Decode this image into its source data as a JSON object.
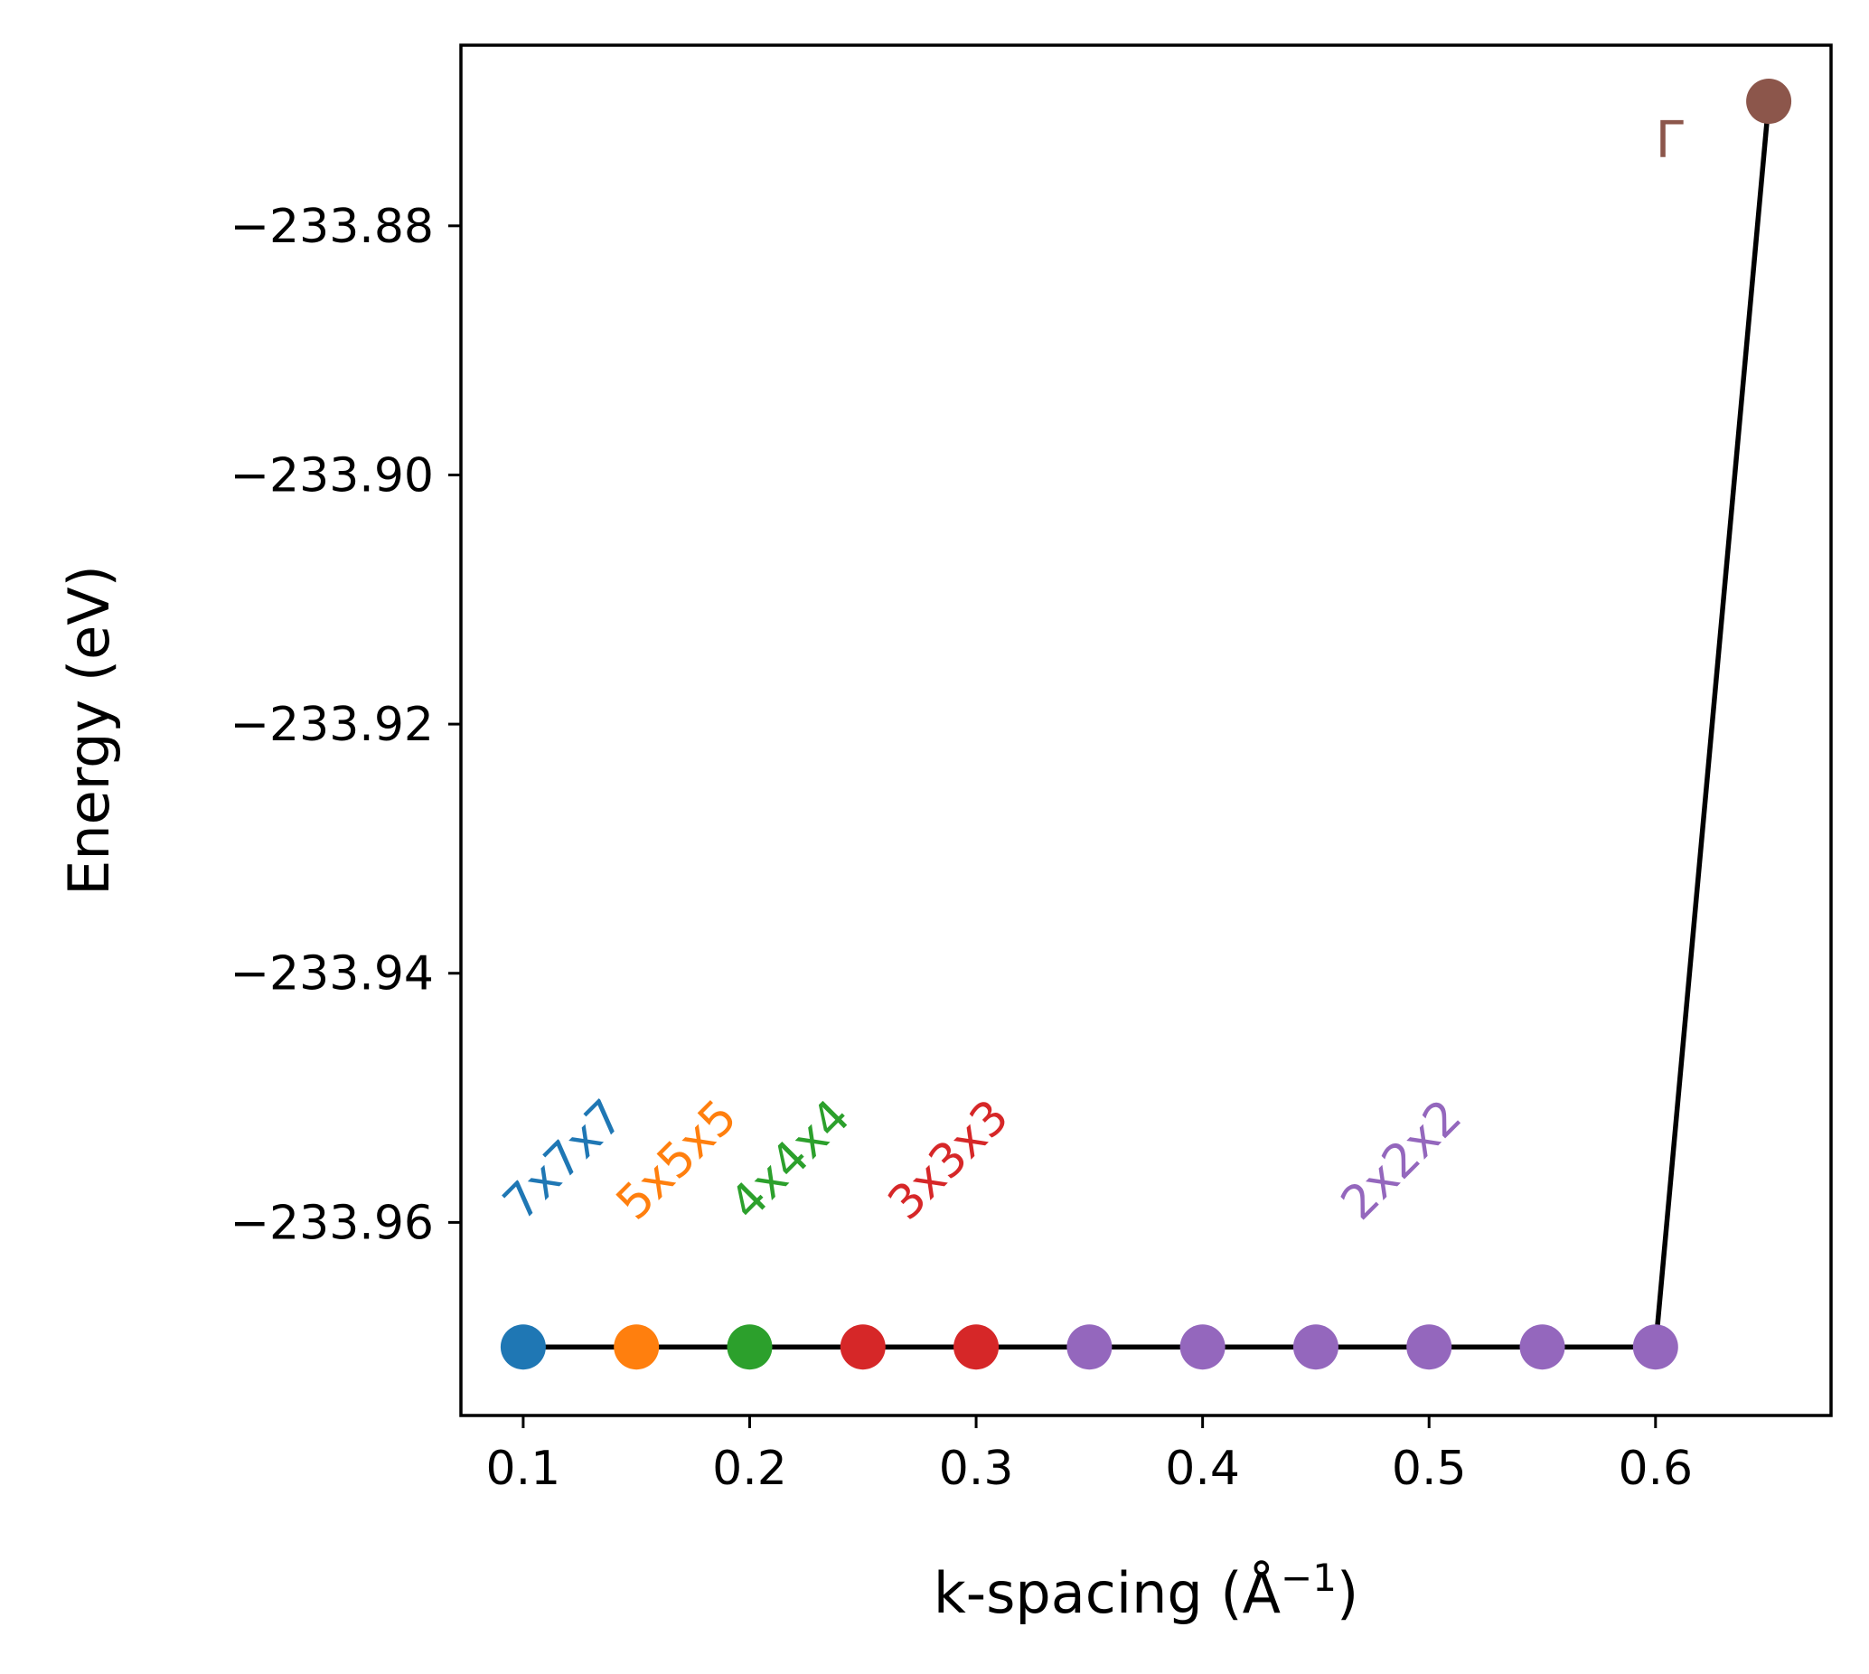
{
  "chart_data": {
    "type": "line",
    "title": "",
    "xlabel": "k-spacing (Å",
    "xlabel_sup": "−1",
    "xlabel_end": ")",
    "ylabel": "Energy (eV)",
    "xlim": [
      0.0725,
      0.6775
    ],
    "ylim": [
      -233.9755,
      -233.8655
    ],
    "xticks": [
      0.1,
      0.2,
      0.3,
      0.4,
      0.5,
      0.6
    ],
    "xtick_labels": [
      "0.1",
      "0.2",
      "0.3",
      "0.4",
      "0.5",
      "0.6"
    ],
    "yticks": [
      -233.88,
      -233.9,
      -233.92,
      -233.94,
      -233.96
    ],
    "ytick_labels": [
      "−233.88",
      "−233.90",
      "−233.92",
      "−233.94",
      "−233.96"
    ],
    "line_color": "#000000",
    "grid": false,
    "points": [
      {
        "x": 0.1,
        "y": -233.97,
        "color": "#1f77b4"
      },
      {
        "x": 0.15,
        "y": -233.97,
        "color": "#ff7f0e"
      },
      {
        "x": 0.2,
        "y": -233.97,
        "color": "#2ca02c"
      },
      {
        "x": 0.25,
        "y": -233.97,
        "color": "#d62728"
      },
      {
        "x": 0.3,
        "y": -233.97,
        "color": "#d62728"
      },
      {
        "x": 0.35,
        "y": -233.97,
        "color": "#9467bd"
      },
      {
        "x": 0.4,
        "y": -233.97,
        "color": "#9467bd"
      },
      {
        "x": 0.45,
        "y": -233.97,
        "color": "#9467bd"
      },
      {
        "x": 0.5,
        "y": -233.97,
        "color": "#9467bd"
      },
      {
        "x": 0.55,
        "y": -233.97,
        "color": "#9467bd"
      },
      {
        "x": 0.6,
        "y": -233.97,
        "color": "#9467bd"
      },
      {
        "x": 0.65,
        "y": -233.87,
        "color": "#8c564b"
      }
    ],
    "annotations": [
      {
        "text": "7x7x7",
        "x": 0.1,
        "y": -233.96,
        "color": "#1f77b4",
        "rotation": 45
      },
      {
        "text": "5x5x5",
        "x": 0.15,
        "y": -233.96,
        "color": "#ff7f0e",
        "rotation": 45
      },
      {
        "text": "4x4x4",
        "x": 0.2,
        "y": -233.96,
        "color": "#2ca02c",
        "rotation": 45
      },
      {
        "text": "3x3x3",
        "x": 0.27,
        "y": -233.96,
        "color": "#d62728",
        "rotation": 45
      },
      {
        "text": "2x2x2",
        "x": 0.47,
        "y": -233.96,
        "color": "#9467bd",
        "rotation": 45
      },
      {
        "text": "Γ",
        "x": 0.6,
        "y": -233.8745,
        "color": "#8c564b",
        "rotation": 0
      }
    ]
  }
}
